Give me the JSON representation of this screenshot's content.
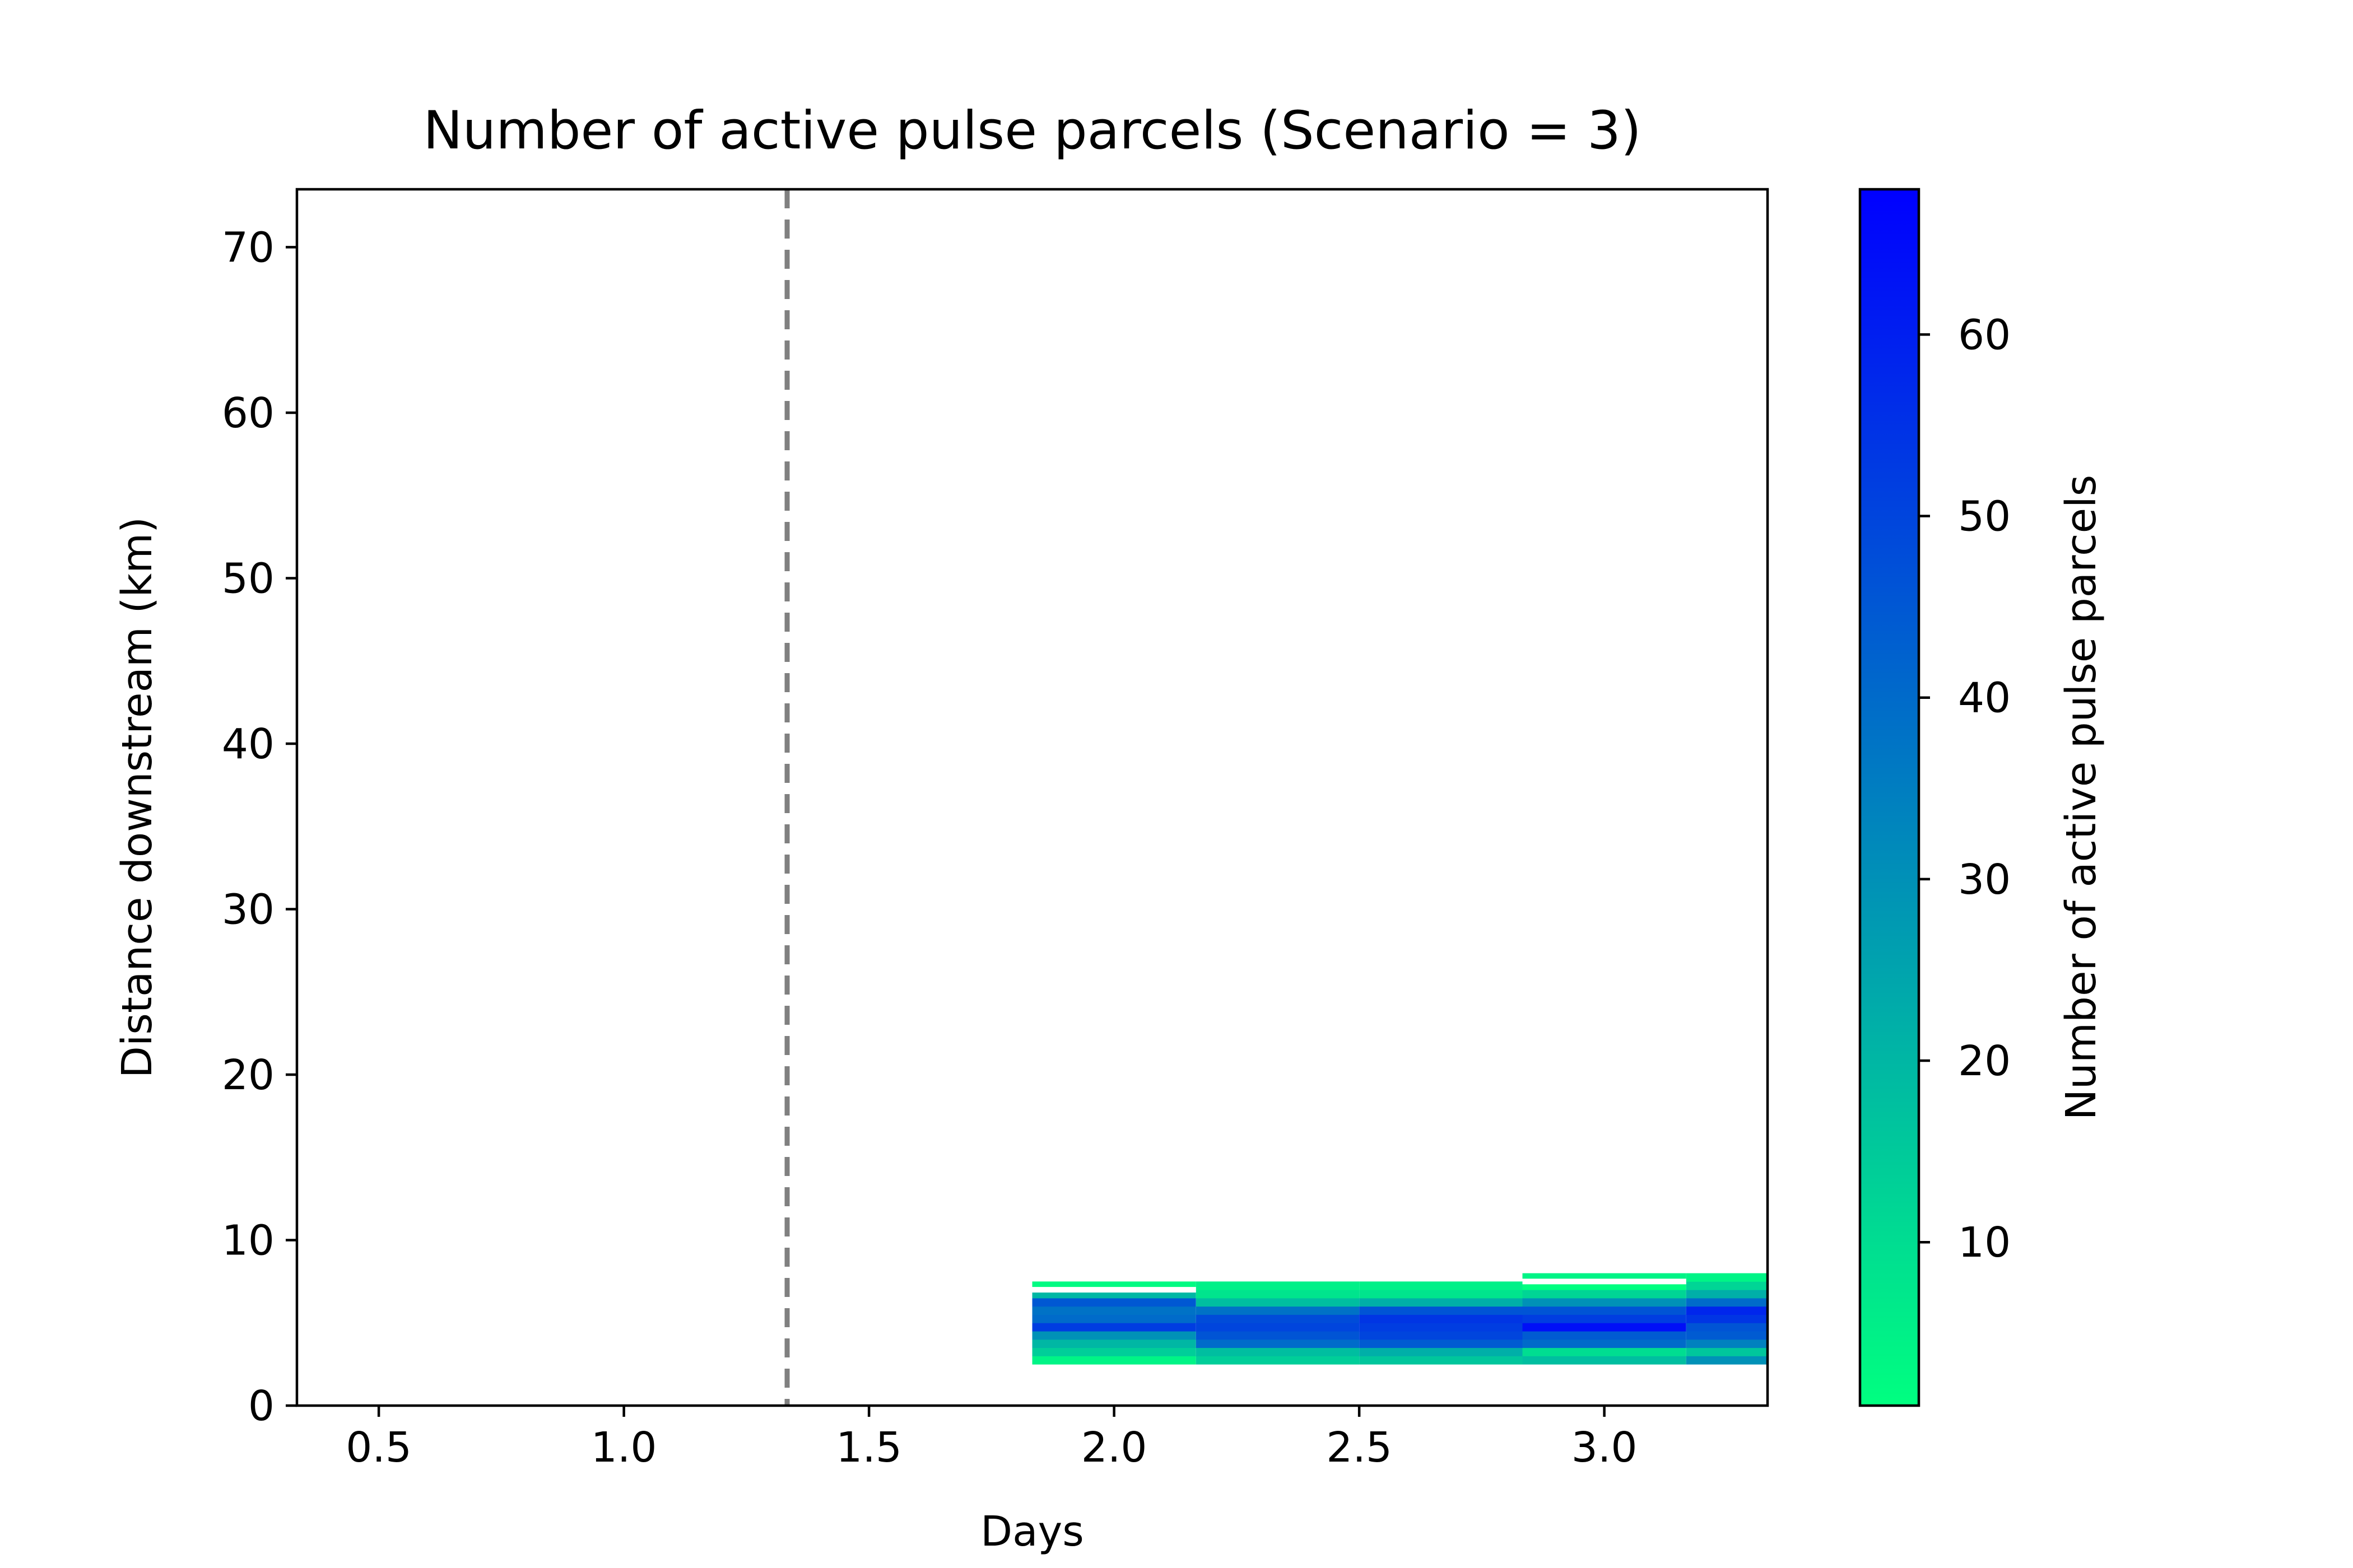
{
  "chart_data": {
    "type": "heatmap",
    "title": "Number of active pulse parcels (Scenario = 3)",
    "xlabel": "Days",
    "ylabel": "Distance downstream (km)",
    "xlim": [
      0.333,
      3.333
    ],
    "ylim": [
      0,
      73.5
    ],
    "x_ticks": [
      0.5,
      1.0,
      1.5,
      2.0,
      2.5,
      3.0
    ],
    "x_tick_labels": [
      "0.5",
      "1.0",
      "1.5",
      "2.0",
      "2.5",
      "3.0"
    ],
    "y_ticks": [
      0,
      10,
      20,
      30,
      40,
      50,
      60,
      70
    ],
    "y_tick_labels": [
      "0",
      "10",
      "20",
      "30",
      "40",
      "50",
      "60",
      "70"
    ],
    "grid": false,
    "vline": {
      "x": 1.333,
      "style": "dashed",
      "color": "#808080"
    },
    "colormap": {
      "low": "#00ff80",
      "high": "#0000ff",
      "min": 1,
      "max": 68
    },
    "colorbar": {
      "label": "Number of active pulse parcels",
      "ticks": [
        10,
        20,
        30,
        40,
        50,
        60
      ],
      "tick_labels": [
        "10",
        "20",
        "30",
        "40",
        "50",
        "60"
      ]
    },
    "cells": [
      {
        "x0": 1.833,
        "x1": 2.167,
        "bands": [
          [
            2.5,
            3.0,
            4
          ],
          [
            3.0,
            3.5,
            14
          ],
          [
            3.5,
            4.0,
            20
          ],
          [
            4.0,
            4.5,
            30
          ],
          [
            4.5,
            5.0,
            52
          ],
          [
            5.0,
            5.5,
            40
          ],
          [
            5.5,
            6.0,
            38
          ],
          [
            6.0,
            6.5,
            45
          ],
          [
            6.5,
            7.0,
            20
          ],
          [
            7.0,
            7.5,
            2
          ]
        ]
      },
      {
        "x0": 2.167,
        "x1": 2.5,
        "bands": [
          [
            2.5,
            3.0,
            14
          ],
          [
            3.0,
            3.5,
            18
          ],
          [
            3.5,
            4.0,
            40
          ],
          [
            4.0,
            4.5,
            46
          ],
          [
            4.5,
            5.0,
            50
          ],
          [
            5.0,
            5.5,
            48
          ],
          [
            5.5,
            6.0,
            38
          ],
          [
            6.0,
            6.5,
            18
          ],
          [
            6.5,
            7.0,
            8
          ],
          [
            7.0,
            7.5,
            5
          ]
        ]
      },
      {
        "x0": 2.5,
        "x1": 2.833,
        "bands": [
          [
            2.5,
            3.0,
            16
          ],
          [
            3.0,
            3.5,
            22
          ],
          [
            3.5,
            4.0,
            44
          ],
          [
            4.0,
            4.5,
            50
          ],
          [
            4.5,
            5.0,
            52
          ],
          [
            5.0,
            5.5,
            54
          ],
          [
            5.5,
            6.0,
            46
          ],
          [
            6.0,
            6.5,
            22
          ],
          [
            6.5,
            7.0,
            8
          ],
          [
            7.0,
            7.5,
            5
          ]
        ]
      },
      {
        "x0": 2.833,
        "x1": 3.167,
        "bands": [
          [
            2.5,
            3.0,
            18
          ],
          [
            3.0,
            3.5,
            10
          ],
          [
            3.5,
            4.0,
            40
          ],
          [
            4.0,
            4.5,
            44
          ],
          [
            4.5,
            5.0,
            64
          ],
          [
            5.0,
            5.5,
            52
          ],
          [
            5.5,
            6.0,
            46
          ],
          [
            6.0,
            6.5,
            30
          ],
          [
            6.5,
            7.0,
            12
          ],
          [
            7.0,
            7.5,
            1
          ],
          [
            7.5,
            8.0,
            4
          ]
        ]
      },
      {
        "x0": 3.167,
        "x1": 3.333,
        "bands": [
          [
            2.5,
            3.0,
            30
          ],
          [
            3.0,
            3.5,
            16
          ],
          [
            3.5,
            4.0,
            34
          ],
          [
            4.0,
            4.5,
            44
          ],
          [
            4.5,
            5.0,
            46
          ],
          [
            5.0,
            5.5,
            54
          ],
          [
            5.5,
            6.0,
            58
          ],
          [
            6.0,
            6.5,
            40
          ],
          [
            6.5,
            7.0,
            22
          ],
          [
            7.0,
            7.5,
            12
          ],
          [
            7.5,
            8.0,
            4
          ]
        ]
      }
    ],
    "white_lines": [
      {
        "x0": 1.833,
        "x1": 2.167,
        "y": 7.0
      },
      {
        "x0": 2.833,
        "x1": 3.167,
        "y": 7.5
      }
    ]
  }
}
